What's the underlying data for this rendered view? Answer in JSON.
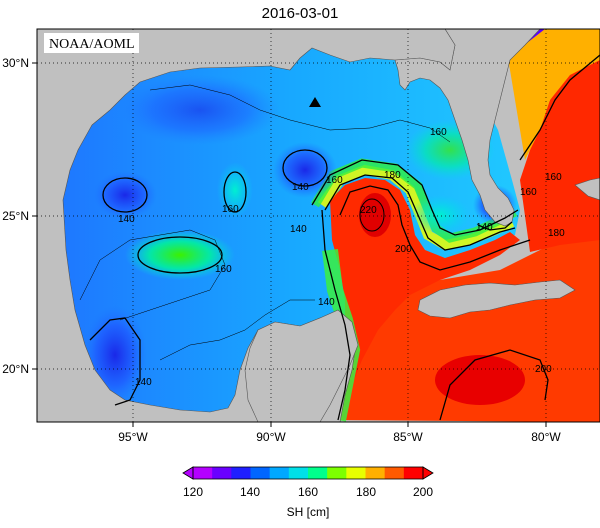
{
  "title": "2016-03-01",
  "credit": "NOAA/AOML",
  "lat_labels": [
    "30°N",
    "25°N",
    "20°N"
  ],
  "lon_labels": [
    "95°W",
    "90°W",
    "85°W",
    "80°W"
  ],
  "contour_labels": [
    "140",
    "160",
    "160",
    "160",
    "140",
    "140",
    "140",
    "160",
    "180",
    "200",
    "220",
    "180",
    "160",
    "140",
    "200",
    "160",
    "140"
  ],
  "colorbar": {
    "ticks": [
      "120",
      "140",
      "160",
      "180",
      "200"
    ],
    "label": "SH [cm]",
    "colors": [
      "#b400ff",
      "#6a00ff",
      "#1f1fff",
      "#0066ff",
      "#00a8ff",
      "#00e0e8",
      "#00ff8c",
      "#7dff00",
      "#e8ff00",
      "#ffb000",
      "#ff5a00",
      "#ff0000"
    ]
  },
  "colors": {
    "land": "#c0c0c0",
    "ocean_low": "#1a3cff",
    "ocean_mid": "#00c8ff",
    "ocean_high": "#ff1a00"
  },
  "marker": "triangle-marker"
}
